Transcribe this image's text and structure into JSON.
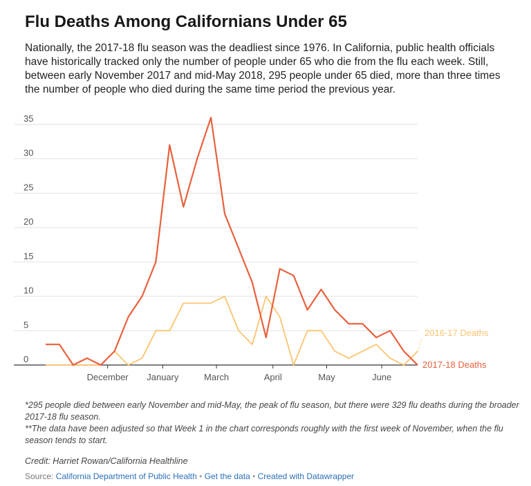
{
  "title": "Flu Deaths Among Californians Under 65",
  "description": "Nationally, the 2017-18 flu season was the deadliest since 1976. In California, public health officials have historically tracked only the number of people under 65 who die from the flu each week. Still, between early November 2017 and mid-May 2018, 295 people under 65 died, more than three times the number of people who died during the same time period the previous year.",
  "chart_data": {
    "type": "line",
    "x": [
      1,
      2,
      3,
      4,
      5,
      6,
      7,
      8,
      9,
      10,
      11,
      12,
      13,
      14,
      15,
      16,
      17,
      18,
      19,
      20,
      21,
      22,
      23,
      24,
      25,
      26,
      27,
      28
    ],
    "series": [
      {
        "name": "2017-18 Deaths",
        "color": "#e8603c",
        "values": [
          3,
          3,
          0,
          1,
          0,
          2,
          7,
          10,
          15,
          32,
          23,
          30,
          36,
          22,
          17,
          12,
          4,
          14,
          13,
          8,
          11,
          8,
          6,
          6,
          4,
          5,
          2,
          0
        ]
      },
      {
        "name": "2016-17 Deaths",
        "color": "#fcc36f",
        "values": [
          0,
          0,
          0,
          0,
          0,
          2,
          0,
          1,
          5,
          5,
          9,
          9,
          9,
          10,
          5,
          3,
          10,
          7,
          0,
          5,
          5,
          2,
          1,
          2,
          3,
          1,
          0,
          2
        ]
      }
    ],
    "x_tick_labels": [
      "December",
      "January",
      "March",
      "April",
      "May",
      "June"
    ],
    "y_ticks": [
      0,
      5,
      10,
      15,
      20,
      25,
      30,
      35
    ],
    "ylim": [
      0,
      36
    ],
    "grid": true
  },
  "notes": [
    "*295 people died between early November and mid-May, the peak of flu season, but there were 329 flu deaths during the broader 2017-18 flu season.",
    "**The data have been adjusted so that Week 1 in the chart corresponds roughly with the first week of November, when the flu season tends to start."
  ],
  "credit": "Credit: Harriet Rowan/California Healthline",
  "source": {
    "label": "Source:",
    "link1": "California Department of Public Health",
    "link2": "Get the data",
    "link3": "Created with Datawrapper"
  }
}
